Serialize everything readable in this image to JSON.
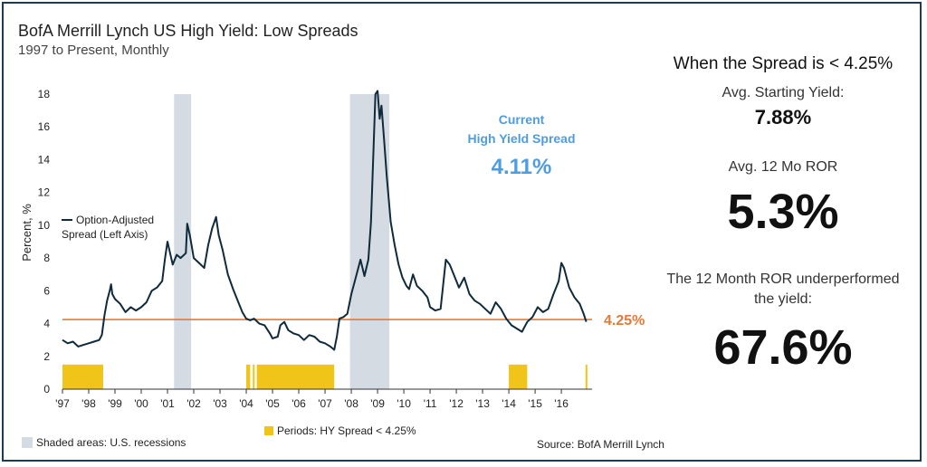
{
  "title": "BofA Merrill Lynch US High Yield: Low Spreads",
  "subtitle": "1997 to Present, Monthly",
  "panel": {
    "heading": "When the Spread is < 4.25%",
    "avg_start_label": "Avg. Starting Yield:",
    "avg_start_value": "7.88%",
    "avg_ror_label": "Avg. 12 Mo ROR",
    "avg_ror_value": "5.3%",
    "under_label": "The 12 Month ROR underperformed the yield:",
    "under_value": "67.6%"
  },
  "footer": {
    "recession_legend": "Shaded areas: U.S. recessions",
    "source": "Source: BofA Merrill Lynch"
  },
  "colors": {
    "line": "#0f2a3a",
    "threshold": "#e07b39",
    "recession": "#d5dbe3",
    "periods": "#f0c419",
    "current_label": "#4d9de0",
    "frame": "#1f3b4d"
  },
  "chart_data": {
    "type": "line",
    "ylabel": "Percent, %",
    "ylim": [
      0,
      18
    ],
    "yticks": [
      0,
      2,
      4,
      6,
      8,
      10,
      12,
      14,
      16,
      18
    ],
    "xlim": [
      1997,
      2017.1
    ],
    "xticks": [
      {
        "x": 1997,
        "label": "'97"
      },
      {
        "x": 1998,
        "label": "'98"
      },
      {
        "x": 1999,
        "label": "'99"
      },
      {
        "x": 2000,
        "label": "'00"
      },
      {
        "x": 2001,
        "label": "'01"
      },
      {
        "x": 2002,
        "label": "'02"
      },
      {
        "x": 2003,
        "label": "'03"
      },
      {
        "x": 2004,
        "label": "'04"
      },
      {
        "x": 2005,
        "label": "'05"
      },
      {
        "x": 2006,
        "label": "'06"
      },
      {
        "x": 2007,
        "label": "'07"
      },
      {
        "x": 2008,
        "label": "'08"
      },
      {
        "x": 2009,
        "label": "'09"
      },
      {
        "x": 2010,
        "label": "'10"
      },
      {
        "x": 2011,
        "label": "'11"
      },
      {
        "x": 2012,
        "label": "'12"
      },
      {
        "x": 2013,
        "label": "'13"
      },
      {
        "x": 2014,
        "label": "'14"
      },
      {
        "x": 2015,
        "label": "'15"
      },
      {
        "x": 2016,
        "label": "'16"
      }
    ],
    "series": [
      {
        "name": "Option-Adjusted Spread (Left Axis)",
        "points": [
          [
            1997.0,
            3.0
          ],
          [
            1997.2,
            2.8
          ],
          [
            1997.4,
            2.9
          ],
          [
            1997.6,
            2.6
          ],
          [
            1997.8,
            2.7
          ],
          [
            1998.0,
            2.8
          ],
          [
            1998.2,
            2.9
          ],
          [
            1998.4,
            3.0
          ],
          [
            1998.5,
            3.3
          ],
          [
            1998.6,
            4.5
          ],
          [
            1998.7,
            5.4
          ],
          [
            1998.8,
            6.0
          ],
          [
            1998.85,
            6.4
          ],
          [
            1998.9,
            5.8
          ],
          [
            1999.0,
            5.5
          ],
          [
            1999.2,
            5.2
          ],
          [
            1999.4,
            4.7
          ],
          [
            1999.6,
            5.0
          ],
          [
            1999.8,
            4.8
          ],
          [
            2000.0,
            5.0
          ],
          [
            2000.2,
            5.3
          ],
          [
            2000.4,
            6.0
          ],
          [
            2000.6,
            6.2
          ],
          [
            2000.8,
            6.6
          ],
          [
            2000.9,
            7.9
          ],
          [
            2001.0,
            9.0
          ],
          [
            2001.1,
            8.3
          ],
          [
            2001.2,
            7.6
          ],
          [
            2001.35,
            8.2
          ],
          [
            2001.5,
            8.0
          ],
          [
            2001.7,
            8.3
          ],
          [
            2001.75,
            10.1
          ],
          [
            2001.85,
            9.4
          ],
          [
            2002.0,
            8.0
          ],
          [
            2002.2,
            7.7
          ],
          [
            2002.4,
            7.4
          ],
          [
            2002.55,
            8.8
          ],
          [
            2002.7,
            9.8
          ],
          [
            2002.85,
            10.5
          ],
          [
            2002.95,
            9.4
          ],
          [
            2003.1,
            8.5
          ],
          [
            2003.3,
            7.0
          ],
          [
            2003.5,
            6.1
          ],
          [
            2003.7,
            5.3
          ],
          [
            2003.85,
            4.7
          ],
          [
            2004.0,
            4.3
          ],
          [
            2004.15,
            4.2
          ],
          [
            2004.3,
            4.3
          ],
          [
            2004.5,
            4.0
          ],
          [
            2004.7,
            3.9
          ],
          [
            2004.9,
            3.4
          ],
          [
            2005.0,
            3.1
          ],
          [
            2005.2,
            3.2
          ],
          [
            2005.3,
            3.9
          ],
          [
            2005.45,
            4.1
          ],
          [
            2005.6,
            3.6
          ],
          [
            2005.8,
            3.4
          ],
          [
            2006.0,
            3.3
          ],
          [
            2006.2,
            3.0
          ],
          [
            2006.4,
            3.3
          ],
          [
            2006.6,
            3.2
          ],
          [
            2006.8,
            2.9
          ],
          [
            2007.0,
            2.8
          ],
          [
            2007.2,
            2.6
          ],
          [
            2007.35,
            2.4
          ],
          [
            2007.45,
            3.2
          ],
          [
            2007.55,
            4.3
          ],
          [
            2007.7,
            4.4
          ],
          [
            2007.85,
            4.6
          ],
          [
            2008.0,
            5.8
          ],
          [
            2008.2,
            7.0
          ],
          [
            2008.35,
            7.9
          ],
          [
            2008.5,
            6.9
          ],
          [
            2008.65,
            7.9
          ],
          [
            2008.75,
            10.2
          ],
          [
            2008.85,
            14.8
          ],
          [
            2008.92,
            18.0
          ],
          [
            2009.0,
            18.2
          ],
          [
            2009.08,
            16.5
          ],
          [
            2009.15,
            17.3
          ],
          [
            2009.25,
            15.2
          ],
          [
            2009.35,
            13.0
          ],
          [
            2009.5,
            10.2
          ],
          [
            2009.65,
            8.8
          ],
          [
            2009.8,
            7.6
          ],
          [
            2009.95,
            6.8
          ],
          [
            2010.1,
            6.3
          ],
          [
            2010.2,
            6.1
          ],
          [
            2010.35,
            7.0
          ],
          [
            2010.5,
            6.3
          ],
          [
            2010.7,
            6.0
          ],
          [
            2010.9,
            5.6
          ],
          [
            2011.0,
            5.0
          ],
          [
            2011.2,
            4.8
          ],
          [
            2011.4,
            4.9
          ],
          [
            2011.6,
            7.9
          ],
          [
            2011.75,
            7.6
          ],
          [
            2011.9,
            7.0
          ],
          [
            2012.1,
            6.2
          ],
          [
            2012.3,
            6.8
          ],
          [
            2012.5,
            5.8
          ],
          [
            2012.7,
            5.4
          ],
          [
            2012.9,
            5.2
          ],
          [
            2013.1,
            4.9
          ],
          [
            2013.3,
            4.6
          ],
          [
            2013.5,
            5.3
          ],
          [
            2013.7,
            4.9
          ],
          [
            2013.9,
            4.3
          ],
          [
            2014.1,
            3.9
          ],
          [
            2014.3,
            3.7
          ],
          [
            2014.5,
            3.5
          ],
          [
            2014.7,
            4.1
          ],
          [
            2014.9,
            4.4
          ],
          [
            2015.1,
            5.0
          ],
          [
            2015.3,
            4.7
          ],
          [
            2015.5,
            4.9
          ],
          [
            2015.7,
            5.8
          ],
          [
            2015.9,
            6.6
          ],
          [
            2016.0,
            7.7
          ],
          [
            2016.1,
            7.4
          ],
          [
            2016.3,
            6.2
          ],
          [
            2016.5,
            5.6
          ],
          [
            2016.7,
            5.2
          ],
          [
            2016.85,
            4.6
          ],
          [
            2016.95,
            4.11
          ]
        ]
      }
    ],
    "threshold": {
      "value": 4.25,
      "label": "4.25%"
    },
    "recessions": [
      [
        2001.25,
        2001.9
      ],
      [
        2007.95,
        2009.45
      ]
    ],
    "periods": {
      "label": "Periods: HY Spread < 4.25%",
      "level": 1.5,
      "ranges": [
        [
          1997.0,
          1998.55
        ],
        [
          2004.0,
          2004.15
        ],
        [
          2004.25,
          2004.3
        ],
        [
          2004.4,
          2007.35
        ],
        [
          2014.0,
          2014.7
        ],
        [
          2016.92,
          2016.98
        ]
      ]
    },
    "current": {
      "line1": "Current",
      "line2": "High Yield Spread",
      "value": "4.11%"
    }
  }
}
